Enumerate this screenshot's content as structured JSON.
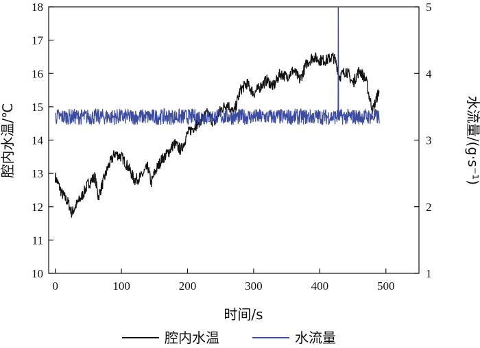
{
  "chart_data": {
    "type": "line",
    "xlabel": "时间/s",
    "ylabel_left": "腔内水温/℃",
    "ylabel_right": "水流量/(g·s⁻¹)",
    "xlim": [
      -10,
      550
    ],
    "xticks": [
      "0",
      "100",
      "200",
      "300",
      "400",
      "500"
    ],
    "ylim_left": [
      10,
      18
    ],
    "yticks_left": [
      "10",
      "11",
      "12",
      "13",
      "14",
      "15",
      "16",
      "17",
      "18"
    ],
    "ylim_right": [
      1,
      5
    ],
    "yticks_right": [
      "1",
      "2",
      "3",
      "4",
      "5"
    ],
    "grid": false,
    "legend_position": "bottom",
    "series": [
      {
        "name": "腔内水温",
        "axis": "left",
        "color": "#111111",
        "x": [
          0,
          10,
          20,
          25,
          30,
          40,
          50,
          60,
          65,
          70,
          80,
          90,
          100,
          110,
          120,
          130,
          140,
          145,
          150,
          160,
          170,
          180,
          190,
          200,
          210,
          220,
          230,
          240,
          250,
          260,
          270,
          280,
          290,
          300,
          310,
          320,
          330,
          340,
          350,
          360,
          370,
          380,
          390,
          400,
          410,
          420,
          425,
          430,
          440,
          450,
          460,
          470,
          475,
          480,
          485,
          490
        ],
        "y": [
          12.9,
          12.4,
          12.1,
          11.8,
          12.0,
          12.3,
          12.7,
          12.9,
          12.3,
          12.6,
          13.2,
          13.6,
          13.5,
          13.2,
          12.8,
          12.9,
          13.2,
          12.7,
          13.0,
          13.4,
          13.6,
          13.9,
          13.7,
          14.2,
          14.4,
          14.6,
          14.8,
          14.5,
          14.9,
          15.1,
          14.8,
          15.5,
          15.7,
          15.4,
          15.6,
          15.8,
          15.6,
          16.0,
          15.9,
          16.1,
          15.8,
          16.3,
          16.5,
          16.4,
          16.4,
          16.5,
          16.3,
          15.9,
          16.1,
          15.7,
          16.1,
          15.8,
          15.3,
          14.9,
          15.2,
          15.5
        ]
      },
      {
        "name": "水流量",
        "axis": "right",
        "color": "#3c4ca0",
        "baseline": 3.35,
        "noise_amplitude": 0.12,
        "x_range": [
          0,
          490
        ],
        "spike": {
          "x": 428,
          "from": 3.3,
          "to": 5.0
        }
      }
    ]
  }
}
